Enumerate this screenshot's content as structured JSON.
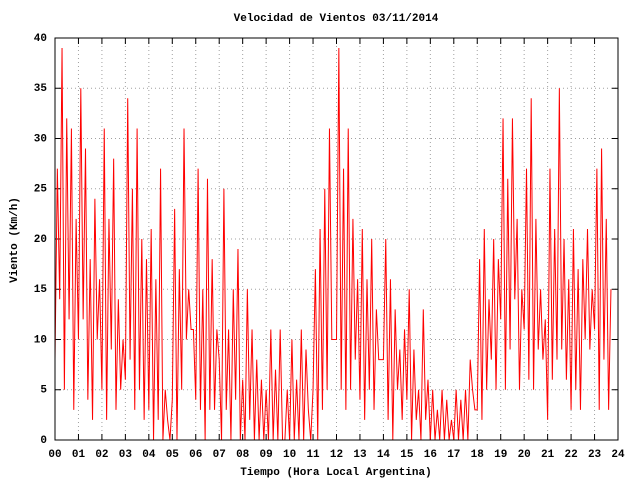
{
  "chart_data": {
    "type": "line",
    "title": "Velocidad de Vientos 03/11/2014",
    "x_label": "Tiempo (Hora Local Argentina)",
    "y_label": "Viento (Km/h)",
    "grid": true,
    "xlim": [
      0,
      24
    ],
    "ylim": [
      0,
      40
    ],
    "xticks": [
      {
        "value": 0,
        "label": "00"
      },
      {
        "value": 1,
        "label": "01"
      },
      {
        "value": 2,
        "label": "02"
      },
      {
        "value": 3,
        "label": "03"
      },
      {
        "value": 4,
        "label": "04"
      },
      {
        "value": 5,
        "label": "05"
      },
      {
        "value": 6,
        "label": "06"
      },
      {
        "value": 7,
        "label": "07"
      },
      {
        "value": 8,
        "label": "08"
      },
      {
        "value": 9,
        "label": "09"
      },
      {
        "value": 10,
        "label": "10"
      },
      {
        "value": 11,
        "label": "11"
      },
      {
        "value": 12,
        "label": "12"
      },
      {
        "value": 13,
        "label": "13"
      },
      {
        "value": 14,
        "label": "14"
      },
      {
        "value": 15,
        "label": "15"
      },
      {
        "value": 16,
        "label": "16"
      },
      {
        "value": 17,
        "label": "17"
      },
      {
        "value": 18,
        "label": "18"
      },
      {
        "value": 19,
        "label": "19"
      },
      {
        "value": 20,
        "label": "20"
      },
      {
        "value": 21,
        "label": "21"
      },
      {
        "value": 22,
        "label": "22"
      },
      {
        "value": 23,
        "label": "23"
      },
      {
        "value": 24,
        "label": "24"
      }
    ],
    "yticks": [
      0,
      5,
      10,
      15,
      20,
      25,
      30,
      35,
      40
    ],
    "color": "#ff0000",
    "x": [
      0,
      0.1,
      0.2,
      0.3,
      0.4,
      0.5,
      0.6,
      0.7,
      0.8,
      0.9,
      1,
      1.1,
      1.2,
      1.3,
      1.4,
      1.5,
      1.6,
      1.7,
      1.8,
      1.9,
      2,
      2.1,
      2.2,
      2.3,
      2.4,
      2.5,
      2.6,
      2.7,
      2.8,
      2.9,
      3,
      3.1,
      3.2,
      3.3,
      3.4,
      3.5,
      3.6,
      3.7,
      3.8,
      3.9,
      4,
      4.1,
      4.2,
      4.3,
      4.4,
      4.5,
      4.6,
      4.7,
      4.8,
      4.9,
      5,
      5.1,
      5.2,
      5.3,
      5.4,
      5.5,
      5.6,
      5.7,
      5.8,
      5.9,
      6,
      6.1,
      6.2,
      6.3,
      6.4,
      6.5,
      6.6,
      6.7,
      6.8,
      6.9,
      7,
      7.1,
      7.2,
      7.3,
      7.4,
      7.5,
      7.6,
      7.7,
      7.8,
      7.9,
      8,
      8.1,
      8.2,
      8.3,
      8.4,
      8.5,
      8.6,
      8.7,
      8.8,
      8.9,
      9,
      9.1,
      9.2,
      9.3,
      9.4,
      9.5,
      9.6,
      9.7,
      9.8,
      9.9,
      10,
      10.1,
      10.2,
      10.3,
      10.4,
      10.5,
      10.6,
      10.7,
      10.8,
      10.9,
      11,
      11.1,
      11.2,
      11.3,
      11.4,
      11.5,
      11.6,
      11.7,
      11.8,
      11.9,
      12,
      12.1,
      12.2,
      12.3,
      12.4,
      12.5,
      12.6,
      12.7,
      12.8,
      12.9,
      13,
      13.1,
      13.2,
      13.3,
      13.4,
      13.5,
      13.6,
      13.7,
      13.8,
      13.9,
      14,
      14.1,
      14.2,
      14.3,
      14.4,
      14.5,
      14.6,
      14.7,
      14.8,
      14.9,
      15,
      15.1,
      15.2,
      15.3,
      15.4,
      15.5,
      15.6,
      15.7,
      15.8,
      15.9,
      16,
      16.1,
      16.2,
      16.3,
      16.4,
      16.5,
      16.6,
      16.7,
      16.8,
      16.9,
      17,
      17.1,
      17.2,
      17.3,
      17.4,
      17.5,
      17.6,
      17.7,
      17.8,
      17.9,
      18,
      18.1,
      18.2,
      18.3,
      18.4,
      18.5,
      18.6,
      18.7,
      18.8,
      18.9,
      19,
      19.1,
      19.2,
      19.3,
      19.4,
      19.5,
      19.6,
      19.7,
      19.8,
      19.9,
      20,
      20.1,
      20.2,
      20.3,
      20.4,
      20.5,
      20.6,
      20.7,
      20.8,
      20.9,
      21,
      21.1,
      21.2,
      21.3,
      21.4,
      21.5,
      21.6,
      21.7,
      21.8,
      21.9,
      22,
      22.1,
      22.2,
      22.3,
      22.4,
      22.5,
      22.6,
      22.7,
      22.8,
      22.9,
      23,
      23.1,
      23.2,
      23.3,
      23.4,
      23.5,
      23.6,
      23.7
    ],
    "values": [
      8,
      27,
      14,
      39,
      5,
      32,
      12,
      31,
      3,
      22,
      10,
      35,
      12,
      29,
      4,
      18,
      2,
      24,
      10,
      16,
      5,
      31,
      2,
      22,
      9,
      28,
      3,
      14,
      5,
      10,
      6,
      34,
      8,
      25,
      3,
      31,
      5,
      20,
      2,
      18,
      3,
      21,
      0,
      16,
      2,
      27,
      0,
      5,
      2,
      0,
      4,
      23,
      0,
      17,
      5,
      31,
      10,
      15,
      11,
      11,
      4,
      27,
      3,
      15,
      0,
      26,
      3,
      18,
      3,
      11,
      8,
      0,
      25,
      3,
      11,
      0,
      15,
      4,
      19,
      0,
      6,
      0,
      15,
      2,
      11,
      0,
      8,
      0,
      6,
      0,
      5,
      0,
      11,
      0,
      7,
      0,
      11,
      0,
      0,
      5,
      0,
      10,
      0,
      6,
      0,
      11,
      0,
      9,
      3,
      0,
      5,
      17,
      0,
      21,
      3,
      25,
      5,
      31,
      10,
      10,
      10,
      39,
      5,
      27,
      3,
      31,
      5,
      22,
      8,
      16,
      4,
      21,
      2,
      16,
      5,
      20,
      3,
      13,
      8,
      8,
      8,
      20,
      2,
      16,
      0,
      13,
      5,
      9,
      2,
      11,
      4,
      15,
      0,
      9,
      2,
      5,
      0,
      13,
      2,
      6,
      0,
      5,
      0,
      3,
      0,
      5,
      0,
      4,
      0,
      2,
      0,
      5,
      0,
      4,
      0,
      5,
      0,
      8,
      5,
      3,
      3,
      18,
      2,
      21,
      5,
      14,
      8,
      20,
      5,
      18,
      12,
      32,
      5,
      26,
      9,
      32,
      14,
      22,
      5,
      15,
      11,
      27,
      6,
      34,
      5,
      22,
      9,
      15,
      8,
      12,
      2,
      27,
      6,
      21,
      8,
      35,
      9,
      20,
      6,
      16,
      3,
      21,
      5,
      17,
      3,
      18,
      10,
      21,
      9,
      15,
      11,
      27,
      3,
      29,
      8,
      22,
      3,
      15
    ]
  }
}
